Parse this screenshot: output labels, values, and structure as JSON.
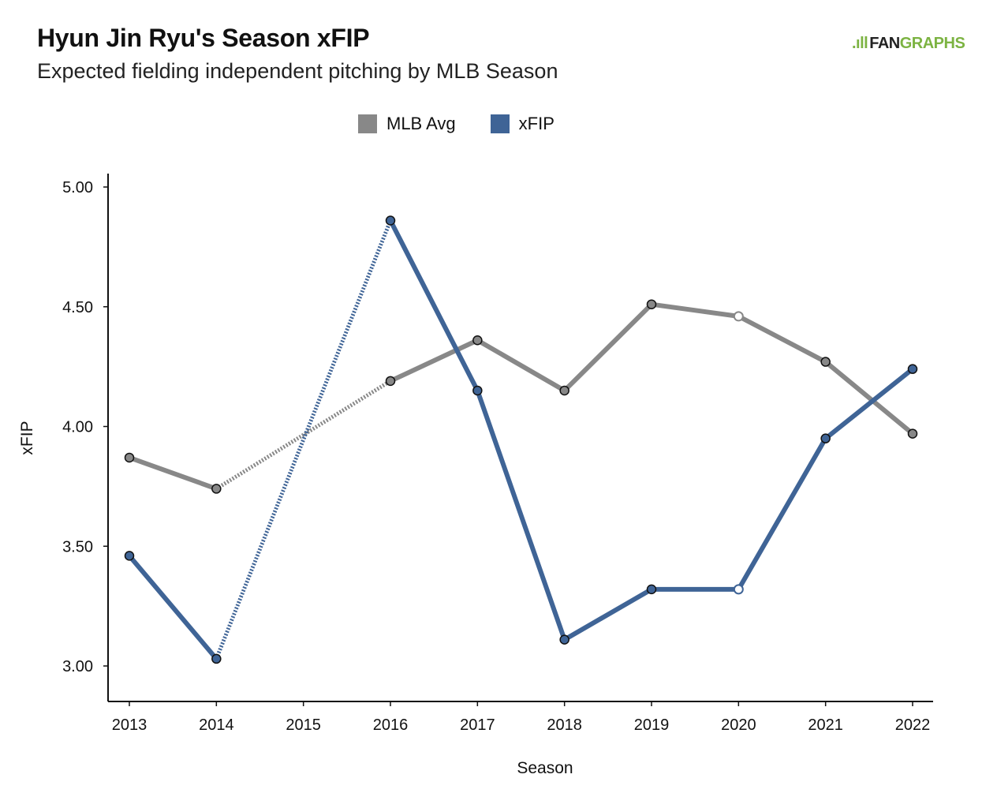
{
  "header": {
    "title": "Hyun Jin Ryu's Season xFIP",
    "subtitle": "Expected fielding independent pitching by MLB Season"
  },
  "logo": {
    "mark": ".ıll",
    "text_a": "FAN",
    "text_b": "GRAPHS"
  },
  "colors": {
    "mlb_avg": "#888888",
    "xfip": "#3f6496",
    "axis": "#111111"
  },
  "chart_data": {
    "type": "line",
    "title": "Hyun Jin Ryu's Season xFIP",
    "subtitle": "Expected fielding independent pitching by MLB Season",
    "xlabel": "Season",
    "ylabel": "xFIP",
    "x": [
      2013,
      2014,
      2015,
      2016,
      2017,
      2018,
      2019,
      2020,
      2021,
      2022
    ],
    "x_tick_labels": [
      "2013",
      "2014",
      "2015",
      "2016",
      "2017",
      "2018",
      "2019",
      "2020",
      "2021",
      "2022"
    ],
    "ylim": [
      2.85,
      5.05
    ],
    "y_ticks": [
      3.0,
      3.5,
      4.0,
      4.5,
      5.0
    ],
    "y_tick_labels": [
      "3.00",
      "3.50",
      "4.00",
      "4.50",
      "5.00"
    ],
    "legend_position": "top-center",
    "grid": false,
    "series": [
      {
        "name": "MLB Avg",
        "color": "#888888",
        "x": [
          2013,
          2014,
          2016,
          2017,
          2018,
          2019,
          2020,
          2021,
          2022
        ],
        "values": [
          3.87,
          3.74,
          4.19,
          4.36,
          4.15,
          4.51,
          4.46,
          4.27,
          3.97
        ],
        "gap_after": [
          2014
        ],
        "hollow_points": [
          2020
        ]
      },
      {
        "name": "xFIP",
        "color": "#3f6496",
        "x": [
          2013,
          2014,
          2016,
          2017,
          2018,
          2019,
          2020,
          2021,
          2022
        ],
        "values": [
          3.46,
          3.03,
          4.86,
          4.15,
          3.11,
          3.32,
          3.32,
          3.95,
          4.24
        ],
        "gap_after": [
          2014
        ],
        "hollow_points": [
          2020
        ]
      }
    ]
  }
}
